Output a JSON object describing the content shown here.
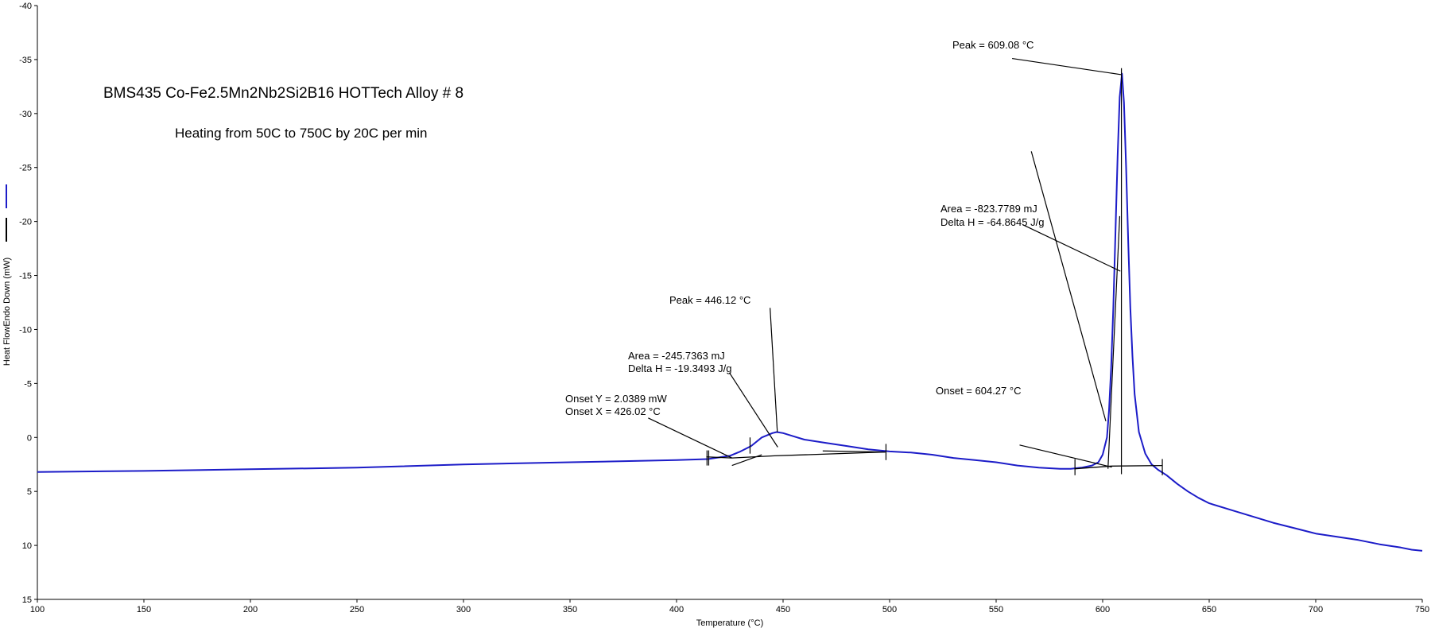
{
  "chart_data": {
    "type": "line",
    "title": "BMS435 Co-Fe2.5Mn2Nb2Si2B16 HOTTech Alloy # 8",
    "subtitle": "Heating from 50C to 750C by 20C per min",
    "xlabel": "Temperature (°C)",
    "ylabel": "Heat FlowEndo Down (mW)",
    "xlim": [
      100,
      750
    ],
    "ylim": [
      15,
      -40
    ],
    "y_inverted": true,
    "grid": false,
    "x_ticks": [
      100,
      150,
      200,
      250,
      300,
      350,
      400,
      450,
      500,
      550,
      600,
      650,
      700,
      750
    ],
    "x_tick_labels": [
      "100",
      "150",
      "200",
      "250",
      "300",
      "350",
      "400",
      "450",
      "500",
      "550",
      "600",
      "650",
      "700",
      "750"
    ],
    "y_ticks": [
      -40,
      -35,
      -30,
      -25,
      -20,
      -15,
      -10,
      -5,
      0,
      5,
      10,
      15
    ],
    "y_tick_labels": [
      "-40",
      "-35",
      "-30",
      "-25",
      "-20",
      "-15",
      "-10",
      "-5",
      "0",
      "5",
      "10",
      "15"
    ],
    "legend": [
      {
        "color": "#1c1cc8",
        "style": "line"
      },
      {
        "color": "#000000",
        "style": "line"
      }
    ],
    "series": [
      {
        "color": "#1c1cc8",
        "x": [
          100,
          150,
          200,
          250,
          300,
          350,
          400,
          415,
          425,
          430,
          435,
          440,
          445,
          447,
          450,
          455,
          460,
          470,
          480,
          490,
          500,
          510,
          520,
          530,
          540,
          550,
          560,
          570,
          580,
          585,
          590,
          595,
          598,
          600,
          602,
          603,
          604,
          605,
          606,
          607,
          608,
          609.08,
          610,
          611,
          612,
          613,
          614,
          615,
          617,
          620,
          623,
          626,
          630,
          635,
          640,
          645,
          650,
          660,
          670,
          680,
          690,
          700,
          710,
          720,
          730,
          740,
          745,
          750
        ],
        "y": [
          3.2,
          3.1,
          2.95,
          2.8,
          2.5,
          2.3,
          2.1,
          2.0,
          1.7,
          1.3,
          0.8,
          0.0,
          -0.4,
          -0.5,
          -0.4,
          -0.1,
          0.2,
          0.5,
          0.8,
          1.1,
          1.3,
          1.4,
          1.6,
          1.9,
          2.1,
          2.3,
          2.6,
          2.8,
          2.9,
          2.9,
          2.8,
          2.6,
          2.3,
          1.6,
          0.0,
          -2.5,
          -6.5,
          -12,
          -19,
          -26,
          -31.5,
          -33.7,
          -31,
          -25,
          -18,
          -12,
          -7.5,
          -4.0,
          -0.5,
          1.5,
          2.5,
          3.0,
          3.5,
          4.3,
          5.0,
          5.6,
          6.1,
          6.7,
          7.3,
          7.9,
          8.4,
          8.9,
          9.2,
          9.5,
          9.9,
          10.2,
          10.4,
          10.5
        ]
      },
      {
        "color": "#000000",
        "x": [
          414,
          426,
          446,
          498
        ],
        "y": [
          1.8,
          1.9,
          1.7,
          1.35
        ]
      },
      {
        "color": "#000000",
        "x": [
          587,
          604.27,
          628
        ],
        "y": [
          2.9,
          2.65,
          2.6
        ]
      }
    ],
    "annotations": {
      "peak2_label": "Peak = 609.08 °C",
      "area2_label": "Area = -823.7789 mJ",
      "deltah2_label": "Delta H = -64.8645 J/g",
      "onset2_label": "Onset = 604.27 °C",
      "peak1_label": "Peak = 446.12 °C",
      "area1_label": "Area = -245.7363 mJ",
      "deltah1_label": "Delta H = -19.3493 J/g",
      "onsety1_label": "Onset Y = 2.0389 mW",
      "onsetx1_label": "Onset X = 426.02 °C"
    }
  }
}
